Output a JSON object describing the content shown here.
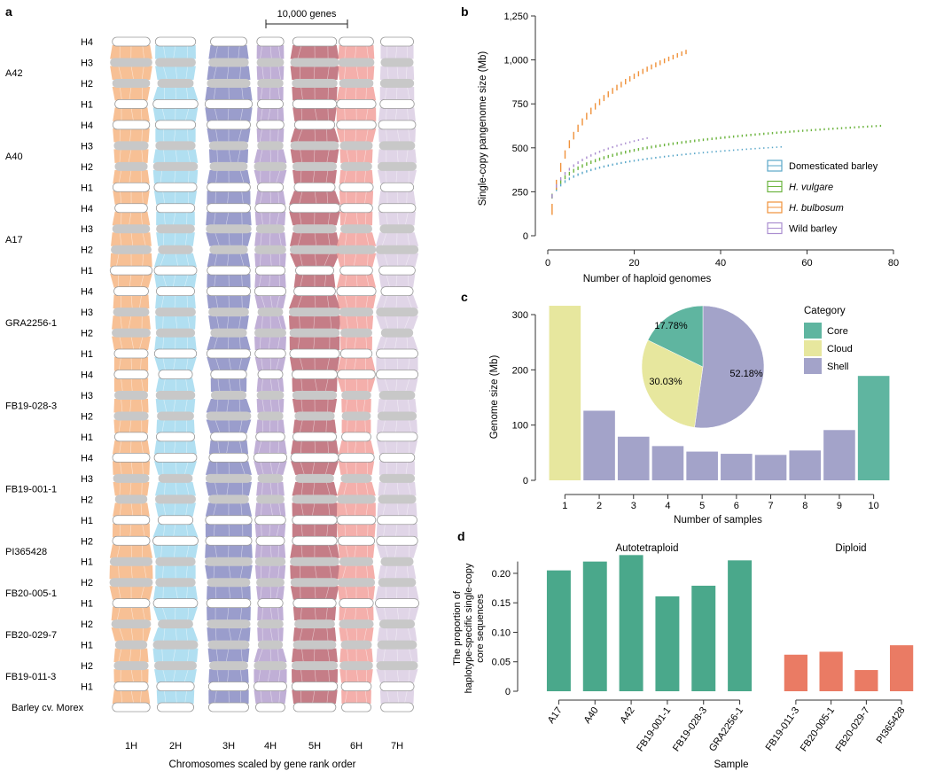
{
  "panel_a": {
    "label": "a",
    "scale_bar_label": "10,000 genes",
    "xlabel": "Chromosomes scaled by gene rank order",
    "chromosomes": [
      "1H",
      "2H",
      "3H",
      "4H",
      "5H",
      "6H",
      "7H"
    ],
    "chrom_colors": [
      "#f6b98a",
      "#a8dcef",
      "#8f92c6",
      "#b9a6d1",
      "#bf6f7a",
      "#f3a6a2",
      "#ddd0e4"
    ],
    "samples": [
      {
        "name": "A42",
        "haps": [
          "H4",
          "H3",
          "H2",
          "H1"
        ]
      },
      {
        "name": "A40",
        "haps": [
          "H4",
          "H3",
          "H2",
          "H1"
        ]
      },
      {
        "name": "A17",
        "haps": [
          "H4",
          "H3",
          "H2",
          "H1"
        ]
      },
      {
        "name": "GRA2256-1",
        "haps": [
          "H4",
          "H3",
          "H2",
          "H1"
        ]
      },
      {
        "name": "FB19-028-3",
        "haps": [
          "H4",
          "H3",
          "H2",
          "H1"
        ]
      },
      {
        "name": "FB19-001-1",
        "haps": [
          "H4",
          "H3",
          "H2",
          "H1"
        ]
      },
      {
        "name": "PI365428",
        "haps": [
          "H2",
          "H1"
        ]
      },
      {
        "name": "FB20-005-1",
        "haps": [
          "H2",
          "H1"
        ]
      },
      {
        "name": "FB20-029-7",
        "haps": [
          "H2",
          "H1"
        ]
      },
      {
        "name": "FB19-011-3",
        "haps": [
          "H2",
          "H1"
        ]
      }
    ],
    "reference_label": "Barley cv. Morex"
  },
  "chart_data": [
    {
      "panel": "b",
      "type": "line",
      "xlabel": "Number of haploid genomes",
      "ylabel": "Single-copy pangenome size (Mb)",
      "xlim": [
        0,
        80
      ],
      "ylim": [
        0,
        1250
      ],
      "xticks": [
        "0",
        "20",
        "40",
        "60",
        "80"
      ],
      "yticks": [
        "0",
        "250",
        "500",
        "750",
        "1,000",
        "1,250"
      ],
      "legend_position": "bottom-right",
      "series": [
        {
          "name": "Domesticated barley",
          "color": "#5aa7c9",
          "n_max": 54,
          "start": 225,
          "end": 505
        },
        {
          "name": "H. vulgare",
          "color": "#6cb43f",
          "n_max": 77,
          "start": 225,
          "end": 625
        },
        {
          "name": "H. bulbosum",
          "color": "#f0913a",
          "n_max": 32,
          "start": 150,
          "end": 1045
        },
        {
          "name": "Wild barley",
          "color": "#ab8ed0",
          "n_max": 23,
          "start": 225,
          "end": 555
        }
      ]
    },
    {
      "panel": "c",
      "type": "bar",
      "xlabel": "Number of samples",
      "ylabel": "Genome size (Mb)",
      "categories": [
        "1",
        "2",
        "3",
        "4",
        "5",
        "6",
        "7",
        "8",
        "9",
        "10"
      ],
      "values": [
        316,
        126,
        79,
        62,
        52,
        48,
        46,
        54,
        91,
        189
      ],
      "bar_categories": [
        "Cloud",
        "Shell",
        "Shell",
        "Shell",
        "Shell",
        "Shell",
        "Shell",
        "Shell",
        "Shell",
        "Core"
      ],
      "ylim": [
        0,
        320
      ],
      "yticks": [
        "0",
        "100",
        "200",
        "300"
      ],
      "legend_title": "Category",
      "legend": [
        {
          "name": "Core",
          "color": "#5fb5a0"
        },
        {
          "name": "Cloud",
          "color": "#e7e79e"
        },
        {
          "name": "Shell",
          "color": "#a3a3c9"
        }
      ],
      "pie": [
        {
          "name": "Core",
          "value": 17.78,
          "label": "17.78%"
        },
        {
          "name": "Cloud",
          "value": 30.03,
          "label": "30.03%"
        },
        {
          "name": "Shell",
          "value": 52.18,
          "label": "52.18%"
        }
      ]
    },
    {
      "panel": "d",
      "type": "bar",
      "xlabel": "Sample",
      "ylabel_lines": [
        "The proportion of",
        "haplotype-specific single-copy",
        "core sequences"
      ],
      "ylim": [
        0,
        0.23
      ],
      "yticks": [
        "0",
        "0.05",
        "0.10",
        "0.15",
        "0.20"
      ],
      "groups": [
        {
          "title": "Autotetraploid",
          "color": "#4aa88b",
          "categories": [
            "A17",
            "A40",
            "A42",
            "FB19-001-1",
            "FB19-028-3",
            "GRA2256-1"
          ],
          "values": [
            0.205,
            0.22,
            0.231,
            0.161,
            0.179,
            0.222
          ]
        },
        {
          "title": "Diploid",
          "color": "#ea7b64",
          "categories": [
            "FB19-011-3",
            "FB20-005-1",
            "FB20-029-7",
            "PI365428"
          ],
          "values": [
            0.062,
            0.067,
            0.036,
            0.078
          ]
        }
      ]
    }
  ]
}
